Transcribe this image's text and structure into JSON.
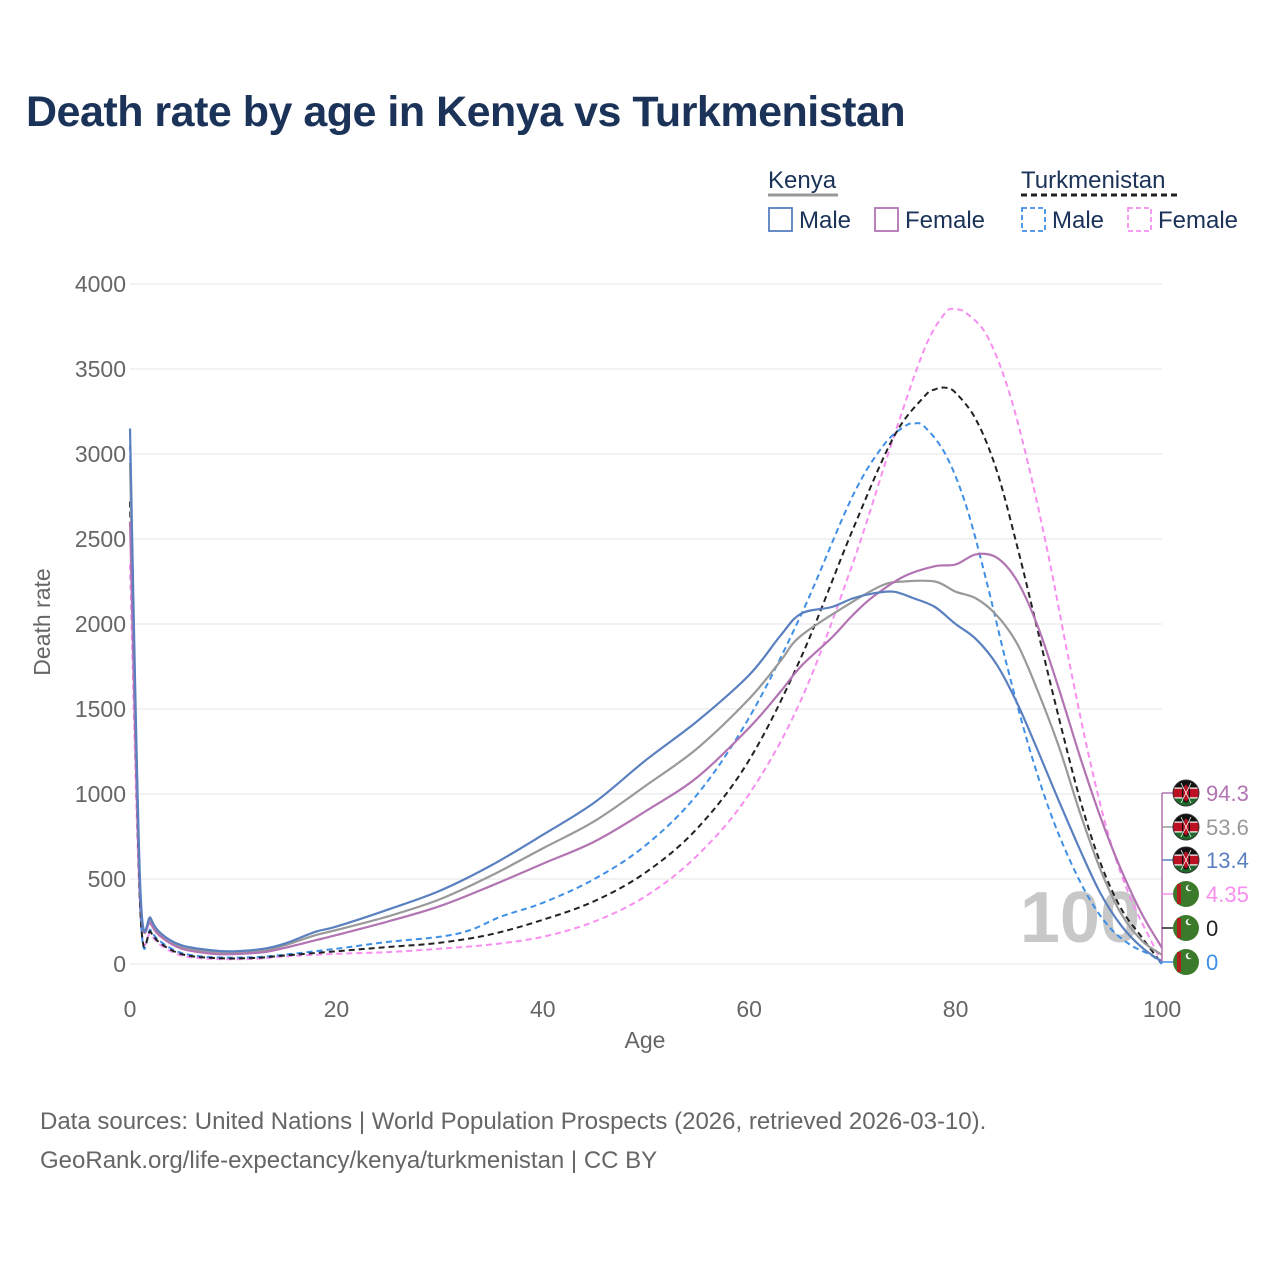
{
  "title": "Death rate by age in Kenya vs Turkmenistan",
  "source_line1": "Data sources: United Nations | World Population Prospects (2026, retrieved 2026-03-10).",
  "source_line2": "GeoRank.org/life-expectancy/kenya/turkmenistan | CC BY",
  "watermark": "100",
  "legend": {
    "groups": [
      {
        "name": "Kenya",
        "line_color": "#999999",
        "dashed": false,
        "items": [
          {
            "label": "Male",
            "color": "#5a80c0"
          },
          {
            "label": "Female",
            "color": "#b274b2"
          }
        ]
      },
      {
        "name": "Turkmenistan",
        "line_color": "#222222",
        "dashed": true,
        "items": [
          {
            "label": "Male",
            "color": "#3f8fe6"
          },
          {
            "label": "Female",
            "color": "#f78ef0"
          }
        ]
      }
    ]
  },
  "chart_data": {
    "type": "line",
    "title": "Death rate by age in Kenya vs Turkmenistan",
    "xlabel": "Age",
    "ylabel": "Death rate",
    "xlim": [
      0,
      100
    ],
    "ylim": [
      0,
      4000
    ],
    "xticks": [
      0,
      20,
      40,
      60,
      80,
      100
    ],
    "yticks": [
      0,
      500,
      1000,
      1500,
      2000,
      2500,
      3000,
      3500,
      4000
    ],
    "grid": true,
    "legend_position": "top-right",
    "series": [
      {
        "name": "Turkmenistan Female",
        "country": "Turkmenistan",
        "sex": "Female",
        "color": "#f78ef0",
        "dashed": true,
        "end_value": "4.35",
        "points": [
          [
            0,
            2350
          ],
          [
            1,
            300
          ],
          [
            2,
            180
          ],
          [
            3,
            110
          ],
          [
            5,
            50
          ],
          [
            8,
            30
          ],
          [
            12,
            30
          ],
          [
            15,
            45
          ],
          [
            20,
            60
          ],
          [
            25,
            70
          ],
          [
            30,
            90
          ],
          [
            35,
            115
          ],
          [
            40,
            160
          ],
          [
            45,
            250
          ],
          [
            50,
            400
          ],
          [
            55,
            640
          ],
          [
            60,
            1000
          ],
          [
            65,
            1550
          ],
          [
            70,
            2350
          ],
          [
            74,
            3100
          ],
          [
            77,
            3620
          ],
          [
            79,
            3830
          ],
          [
            80,
            3850
          ],
          [
            81,
            3830
          ],
          [
            83,
            3700
          ],
          [
            85,
            3400
          ],
          [
            87,
            2950
          ],
          [
            89,
            2400
          ],
          [
            91,
            1780
          ],
          [
            93,
            1200
          ],
          [
            95,
            720
          ],
          [
            97,
            380
          ],
          [
            99,
            130
          ],
          [
            100,
            4.35
          ]
        ]
      },
      {
        "name": "Turkmenistan Male",
        "country": "Turkmenistan",
        "sex": "Male",
        "color": "#3f8fe6",
        "dashed": true,
        "end_value": "0",
        "points": [
          [
            0,
            3050
          ],
          [
            1,
            330
          ],
          [
            2,
            200
          ],
          [
            3,
            130
          ],
          [
            5,
            65
          ],
          [
            8,
            40
          ],
          [
            12,
            40
          ],
          [
            15,
            55
          ],
          [
            20,
            90
          ],
          [
            25,
            130
          ],
          [
            30,
            160
          ],
          [
            33,
            200
          ],
          [
            36,
            280
          ],
          [
            40,
            360
          ],
          [
            45,
            500
          ],
          [
            50,
            700
          ],
          [
            55,
            1000
          ],
          [
            60,
            1450
          ],
          [
            65,
            2050
          ],
          [
            70,
            2750
          ],
          [
            73,
            3050
          ],
          [
            75,
            3160
          ],
          [
            76,
            3180
          ],
          [
            77,
            3160
          ],
          [
            79,
            3000
          ],
          [
            81,
            2700
          ],
          [
            83,
            2250
          ],
          [
            85,
            1750
          ],
          [
            87,
            1300
          ],
          [
            89,
            920
          ],
          [
            91,
            620
          ],
          [
            93,
            380
          ],
          [
            95,
            210
          ],
          [
            97,
            110
          ],
          [
            99,
            50
          ],
          [
            100,
            0
          ]
        ]
      },
      {
        "name": "Turkmenistan Total",
        "country": "Turkmenistan",
        "sex": "Total",
        "color": "#222222",
        "dashed": true,
        "end_value": "0",
        "points": [
          [
            0,
            2720
          ],
          [
            1,
            320
          ],
          [
            2,
            190
          ],
          [
            3,
            120
          ],
          [
            5,
            58
          ],
          [
            8,
            35
          ],
          [
            12,
            35
          ],
          [
            15,
            50
          ],
          [
            20,
            75
          ],
          [
            25,
            100
          ],
          [
            30,
            125
          ],
          [
            35,
            175
          ],
          [
            40,
            260
          ],
          [
            45,
            370
          ],
          [
            50,
            540
          ],
          [
            55,
            800
          ],
          [
            60,
            1200
          ],
          [
            65,
            1800
          ],
          [
            70,
            2550
          ],
          [
            74,
            3100
          ],
          [
            77,
            3340
          ],
          [
            78,
            3380
          ],
          [
            79,
            3390
          ],
          [
            80,
            3360
          ],
          [
            82,
            3200
          ],
          [
            84,
            2900
          ],
          [
            86,
            2450
          ],
          [
            88,
            1950
          ],
          [
            90,
            1450
          ],
          [
            92,
            980
          ],
          [
            94,
            600
          ],
          [
            96,
            330
          ],
          [
            98,
            160
          ],
          [
            100,
            0
          ]
        ]
      },
      {
        "name": "Kenya Total",
        "country": "Kenya",
        "sex": "Total",
        "color": "#999999",
        "dashed": false,
        "end_value": "53.6",
        "points": [
          [
            0,
            2950
          ],
          [
            1,
            420
          ],
          [
            2,
            260
          ],
          [
            3,
            170
          ],
          [
            5,
            100
          ],
          [
            8,
            70
          ],
          [
            10,
            65
          ],
          [
            13,
            80
          ],
          [
            15,
            110
          ],
          [
            18,
            170
          ],
          [
            20,
            200
          ],
          [
            25,
            280
          ],
          [
            30,
            380
          ],
          [
            35,
            520
          ],
          [
            40,
            680
          ],
          [
            45,
            840
          ],
          [
            50,
            1050
          ],
          [
            55,
            1270
          ],
          [
            60,
            1560
          ],
          [
            63,
            1780
          ],
          [
            65,
            1930
          ],
          [
            70,
            2130
          ],
          [
            73,
            2230
          ],
          [
            75,
            2250
          ],
          [
            78,
            2250
          ],
          [
            80,
            2190
          ],
          [
            82,
            2150
          ],
          [
            84,
            2050
          ],
          [
            86,
            1880
          ],
          [
            88,
            1600
          ],
          [
            90,
            1280
          ],
          [
            92,
            900
          ],
          [
            94,
            560
          ],
          [
            96,
            300
          ],
          [
            98,
            140
          ],
          [
            100,
            53.6
          ]
        ]
      },
      {
        "name": "Kenya Female",
        "country": "Kenya",
        "sex": "Female",
        "color": "#b274b2",
        "dashed": false,
        "end_value": "94.3",
        "points": [
          [
            0,
            2600
          ],
          [
            1,
            400
          ],
          [
            2,
            240
          ],
          [
            3,
            160
          ],
          [
            5,
            90
          ],
          [
            8,
            60
          ],
          [
            10,
            58
          ],
          [
            13,
            70
          ],
          [
            15,
            95
          ],
          [
            18,
            140
          ],
          [
            20,
            170
          ],
          [
            25,
            250
          ],
          [
            30,
            340
          ],
          [
            35,
            460
          ],
          [
            40,
            590
          ],
          [
            45,
            720
          ],
          [
            50,
            900
          ],
          [
            55,
            1100
          ],
          [
            60,
            1390
          ],
          [
            63,
            1600
          ],
          [
            65,
            1750
          ],
          [
            68,
            1920
          ],
          [
            70,
            2050
          ],
          [
            72,
            2160
          ],
          [
            75,
            2280
          ],
          [
            78,
            2340
          ],
          [
            80,
            2350
          ],
          [
            82,
            2410
          ],
          [
            84,
            2390
          ],
          [
            86,
            2250
          ],
          [
            88,
            1980
          ],
          [
            90,
            1620
          ],
          [
            92,
            1230
          ],
          [
            94,
            870
          ],
          [
            96,
            560
          ],
          [
            98,
            300
          ],
          [
            100,
            94.3
          ]
        ]
      },
      {
        "name": "Kenya Male",
        "country": "Kenya",
        "sex": "Male",
        "color": "#5a80c0",
        "dashed": false,
        "end_value": "13.4",
        "points": [
          [
            0,
            3150
          ],
          [
            1,
            450
          ],
          [
            2,
            270
          ],
          [
            3,
            180
          ],
          [
            5,
            110
          ],
          [
            8,
            80
          ],
          [
            10,
            75
          ],
          [
            13,
            90
          ],
          [
            15,
            120
          ],
          [
            18,
            190
          ],
          [
            20,
            220
          ],
          [
            25,
            320
          ],
          [
            30,
            430
          ],
          [
            35,
            580
          ],
          [
            40,
            760
          ],
          [
            45,
            950
          ],
          [
            50,
            1200
          ],
          [
            55,
            1430
          ],
          [
            60,
            1700
          ],
          [
            63,
            1930
          ],
          [
            65,
            2060
          ],
          [
            68,
            2100
          ],
          [
            70,
            2150
          ],
          [
            72,
            2180
          ],
          [
            74,
            2190
          ],
          [
            76,
            2150
          ],
          [
            78,
            2100
          ],
          [
            80,
            2000
          ],
          [
            82,
            1910
          ],
          [
            84,
            1760
          ],
          [
            86,
            1530
          ],
          [
            88,
            1250
          ],
          [
            90,
            960
          ],
          [
            92,
            680
          ],
          [
            94,
            420
          ],
          [
            96,
            230
          ],
          [
            98,
            100
          ],
          [
            100,
            13.4
          ]
        ]
      }
    ]
  }
}
